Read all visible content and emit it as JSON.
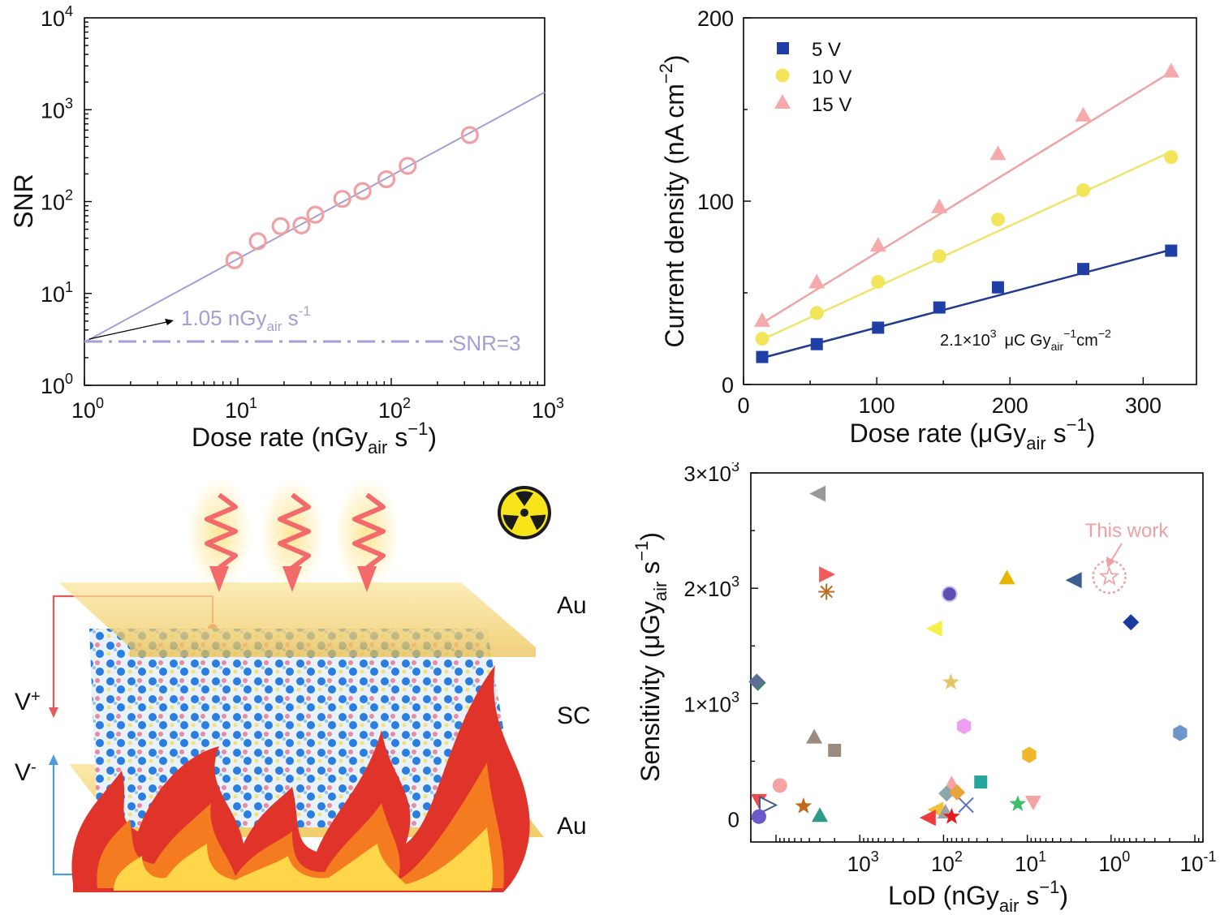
{
  "chart_data": [
    {
      "type": "scatter",
      "xlabel": "Dose rate (nGy",
      "xlabel_sub": "air",
      "xlabel_tail": " s",
      "xlabel_sup": "−1",
      "xlabel_close": ")",
      "ylabel": "SNR",
      "x_scale": "log",
      "y_scale": "log",
      "xlim": [
        1,
        1000
      ],
      "ylim": [
        1,
        10000
      ],
      "x_tick_labels": [
        {
          "base": "10",
          "exp": "0",
          "value": 1
        },
        {
          "base": "10",
          "exp": "1",
          "value": 10
        },
        {
          "base": "10",
          "exp": "2",
          "value": 100
        },
        {
          "base": "10",
          "exp": "3",
          "value": 1000
        }
      ],
      "y_tick_labels": [
        {
          "base": "10",
          "exp": "0",
          "value": 1
        },
        {
          "base": "10",
          "exp": "1",
          "value": 10
        },
        {
          "base": "10",
          "exp": "2",
          "value": 100
        },
        {
          "base": "10",
          "exp": "3",
          "value": 1000
        },
        {
          "base": "10",
          "exp": "4",
          "value": 10000
        }
      ],
      "points": [
        {
          "x": 9.5,
          "y": 23
        },
        {
          "x": 13.5,
          "y": 37
        },
        {
          "x": 19,
          "y": 54
        },
        {
          "x": 26,
          "y": 55
        },
        {
          "x": 32,
          "y": 72
        },
        {
          "x": 48,
          "y": 107
        },
        {
          "x": 65,
          "y": 130
        },
        {
          "x": 93,
          "y": 175
        },
        {
          "x": 128,
          "y": 245
        },
        {
          "x": 325,
          "y": 530
        }
      ],
      "fit_line": {
        "x": [
          1,
          1000
        ],
        "y": [
          2.95,
          1550
        ]
      },
      "threshold": {
        "y": 3,
        "x": [
          1,
          250
        ]
      },
      "annotations": {
        "lod_value": "1.05 nGy",
        "lod_sub": "air",
        "lod_tail": " s",
        "lod_sup": "-1",
        "snr_label": "SNR=3"
      },
      "colors": {
        "marker": "#f0a0a4",
        "line": "#a59dd5"
      },
      "grid": false
    },
    {
      "type": "scatter",
      "xlabel": "Dose rate (μGy",
      "xlabel_sub": "air",
      "xlabel_tail": " s",
      "xlabel_sup": "−1",
      "xlabel_close": ")",
      "ylabel": "Current density (nA cm",
      "ylabel_sup": "−2",
      "ylabel_close": ")",
      "xlim": [
        0,
        340
      ],
      "ylim": [
        0,
        200
      ],
      "x_ticks": [
        0,
        100,
        200,
        300
      ],
      "y_ticks": [
        0,
        100,
        200
      ],
      "legend_placement": "top-left",
      "x": [
        14,
        55,
        101,
        147,
        191,
        255,
        321
      ],
      "series": [
        {
          "name": "5 V",
          "marker": "square",
          "color": "#1f3fa6",
          "line_color": "#213a8f",
          "values": [
            15,
            22,
            31,
            42,
            53,
            63,
            73
          ]
        },
        {
          "name": "10 V",
          "marker": "circle",
          "color": "#f2e55c",
          "line_color": "#efe36a",
          "values": [
            25,
            39,
            56,
            70,
            90,
            106,
            124
          ]
        },
        {
          "name": "15 V",
          "marker": "triangle",
          "color": "#f5a9aa",
          "line_color": "#eea4a4",
          "values": [
            35,
            56,
            76,
            97,
            126,
            147,
            171
          ]
        }
      ],
      "fits": [
        {
          "x": [
            14,
            321
          ],
          "y": [
            14.5,
            73.5
          ]
        },
        {
          "x": [
            14,
            321
          ],
          "y": [
            24.5,
            127
          ]
        },
        {
          "x": [
            14,
            321
          ],
          "y": [
            33.5,
            170.5
          ]
        }
      ],
      "annotation": {
        "base": "2.1×10",
        "exp": "3",
        "unit": "μC Gy",
        "sub": "air",
        "sup2": "−1",
        "tail": "cm",
        "sup3": "−2"
      },
      "grid": false
    },
    {
      "type": "scatter",
      "xlabel": "LoD (nGy",
      "xlabel_sub": "air",
      "xlabel_tail": " s",
      "xlabel_sup": "−1",
      "xlabel_close": ")",
      "ylabel": "Sensitivity (μGy",
      "ylabel_sub": "air",
      "ylabel_tail": " s",
      "ylabel_sup": "−1",
      "ylabel_close": ")",
      "x_scale": "log",
      "x_reversed": true,
      "xlim": [
        20000,
        0.08
      ],
      "ylim": [
        -200,
        3000
      ],
      "x_tick_labels": [
        {
          "base": "10",
          "exp": "3",
          "value": 1000
        },
        {
          "base": "10",
          "exp": "2",
          "value": 100
        },
        {
          "base": "10",
          "exp": "1",
          "value": 10
        },
        {
          "base": "10",
          "exp": "0",
          "value": 1
        },
        {
          "base": "10",
          "exp": "-1",
          "value": 0.1
        }
      ],
      "y_tick_labels": [
        {
          "text": "0",
          "value": 0
        },
        {
          "base": "1×10",
          "exp": "3",
          "value": 1000
        },
        {
          "base": "2×10",
          "exp": "3",
          "value": 2000
        },
        {
          "base": "3×10",
          "exp": "3",
          "value": 3000
        }
      ],
      "highlight_label": "This work",
      "highlight_point": {
        "x": 1.05,
        "y": 2100
      },
      "points": [
        {
          "x": 3200,
          "y": 2820,
          "marker": "tri-left",
          "color": "#9a9a9a"
        },
        {
          "x": 2450,
          "y": 2120,
          "marker": "tri-right",
          "color": "#f15b5b"
        },
        {
          "x": 2500,
          "y": 1970,
          "marker": "asterisk",
          "color": "#b86a1e"
        },
        {
          "x": 85,
          "y": 1950,
          "marker": "sphere",
          "color": "#5b50b0"
        },
        {
          "x": 130,
          "y": 1650,
          "marker": "tri-left",
          "color": "#f7ef4a"
        },
        {
          "x": 17.5,
          "y": 2090,
          "marker": "tri-up",
          "color": "#e8b600"
        },
        {
          "x": 2.8,
          "y": 2070,
          "marker": "tri-left",
          "color": "#3b5d8f"
        },
        {
          "x": 0.58,
          "y": 1705,
          "marker": "diamond",
          "color": "#1b3aa0"
        },
        {
          "x": 82,
          "y": 1185,
          "marker": "star",
          "color": "#e6c46a"
        },
        {
          "x": 16500,
          "y": 1180,
          "marker": "diamond",
          "color": "#2f8a4f"
        },
        {
          "x": 17000,
          "y": 1190,
          "marker": "diamond",
          "color": "#5a6f92"
        },
        {
          "x": 57,
          "y": 805,
          "marker": "hexagon",
          "color": "#ef9ff2"
        },
        {
          "x": 3500,
          "y": 710,
          "marker": "tri-up",
          "color": "#9b8a7e"
        },
        {
          "x": 2000,
          "y": 595,
          "marker": "square",
          "color": "#9b8a7e"
        },
        {
          "x": 9.5,
          "y": 555,
          "marker": "hexagon",
          "color": "#f2b62a"
        },
        {
          "x": 0.15,
          "y": 745,
          "marker": "hexagon",
          "color": "#6e95cc"
        },
        {
          "x": 36,
          "y": 320,
          "marker": "square",
          "color": "#26a69a"
        },
        {
          "x": 9000,
          "y": 290,
          "marker": "circle",
          "color": "#f5a3a3"
        },
        {
          "x": 80,
          "y": 305,
          "marker": "tri-up",
          "color": "#f5a3a3"
        },
        {
          "x": 16000,
          "y": 160,
          "marker": "tri-down",
          "color": "#ee4b4b"
        },
        {
          "x": 12500,
          "y": 120,
          "marker": "tri-right-outline",
          "color": "#3b5d8f"
        },
        {
          "x": 4700,
          "y": 110,
          "marker": "star",
          "color": "#c26a1a"
        },
        {
          "x": 13,
          "y": 130,
          "marker": "star",
          "color": "#3fbf6a"
        },
        {
          "x": 8.5,
          "y": 145,
          "marker": "tri-down",
          "color": "#f5a3a3"
        },
        {
          "x": 54,
          "y": 120,
          "marker": "cross",
          "color": "#5a75c0"
        },
        {
          "x": 92,
          "y": 220,
          "marker": "diamond",
          "color": "#8aa8a8"
        },
        {
          "x": 69,
          "y": 230,
          "marker": "diamond",
          "color": "#e8a33a"
        },
        {
          "x": 16000,
          "y": 20,
          "marker": "circle",
          "color": "#6a5acd"
        },
        {
          "x": 3000,
          "y": 30,
          "marker": "tri-up",
          "color": "#2e9a8a"
        },
        {
          "x": 125,
          "y": 80,
          "marker": "tri-left",
          "color": "#f2c038"
        },
        {
          "x": 95,
          "y": 60,
          "marker": "tri-up",
          "color": "#a0a0a0"
        },
        {
          "x": 155,
          "y": 10,
          "marker": "tri-left",
          "color": "#ee3b3b"
        },
        {
          "x": 80,
          "y": 20,
          "marker": "star",
          "color": "#e61c1c"
        }
      ],
      "grid": false
    }
  ],
  "illustration": {
    "labels": {
      "top_electrode": "Au",
      "semiconductor": "SC",
      "bottom_electrode": "Au",
      "v_plus": "V",
      "v_plus_sup": "+",
      "v_minus": "V",
      "v_minus_sup": "-"
    },
    "colors": {
      "electrode": "#f5d77a",
      "flame_outer": "#e0342a",
      "flame_mid": "#f47b1f",
      "flame_inner": "#ffd54a",
      "crystal_blue": "#2a7de1",
      "crystal_pink": "#e88aa0",
      "xray": "#f26a6a",
      "wire_red": "#e55b5b",
      "wire_blue": "#4a9be0"
    },
    "icons": [
      "radiation-icon",
      "xray-wave-icon",
      "flame-icon"
    ]
  }
}
